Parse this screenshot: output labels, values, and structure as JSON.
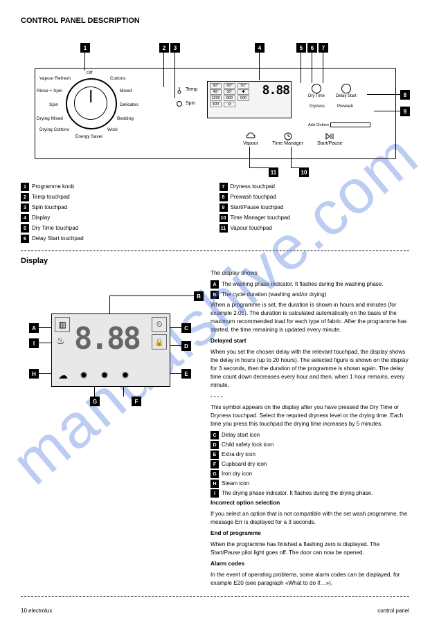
{
  "watermark": "manualshive.com",
  "section_title": "CONTROL PANEL DESCRIPTION",
  "dial": {
    "programs": [
      "Off",
      "Cottons",
      "Mixed",
      "Delicates",
      "Bedding",
      "Wool",
      "Energy Saver",
      "Drying Cottons",
      "Drying Mixed",
      "Spin",
      "Rinse + Spin",
      "Vapour Refresh"
    ]
  },
  "mid": {
    "temp": "Temp",
    "spin": "Spin"
  },
  "screen": {
    "temps": [
      "90°",
      "60°",
      "50°",
      "40°",
      "30°",
      "✱"
    ],
    "spins": [
      "1200",
      "800",
      "600",
      "400",
      "⊘"
    ],
    "digits": "8.88"
  },
  "dry_row": [
    "Dry Time",
    "Delay Start"
  ],
  "dry_row2": [
    "Dryness",
    "Prewash"
  ],
  "add_clothes": "Add Clothes",
  "buttons": [
    "Vapour",
    "Time Manager",
    "Start/Pause"
  ],
  "legend": [
    {
      "n": "1",
      "t": "Programme knob"
    },
    {
      "n": "2",
      "t": "Temp touchpad"
    },
    {
      "n": "3",
      "t": "Spin touchpad"
    },
    {
      "n": "4",
      "t": "Display"
    },
    {
      "n": "5",
      "t": "Dry Time touchpad"
    },
    {
      "n": "6",
      "t": "Delay Start touchpad"
    },
    {
      "n": "7",
      "t": "Dryness touchpad"
    },
    {
      "n": "8",
      "t": "Prewash touchpad"
    },
    {
      "n": "9",
      "t": "Start/Pause touchpad"
    },
    {
      "n": "10",
      "t": "Time Manager touchpad"
    },
    {
      "n": "11",
      "t": "Vapour touchpad"
    }
  ],
  "display_title": "Display",
  "display_intro": "The display shows:",
  "display_A": {
    "n": "A",
    "t": "The washing phase indicator. It flashes during the washing phase."
  },
  "display_B": {
    "n": "B",
    "t": "The cycle duration (washing and/or drying)"
  },
  "display_B_text": "When a programme is set, the duration is shown in hours and minutes (for example 2.05). The duration is calculated automatically on the basis of the maximum recommended load for each type of fabric. After the programme has started, the time remaining is updated every minute.",
  "display_delay": "Delayed start",
  "display_delay_text": "When you set the chosen delay with the relevant touchpad, the display shows the delay in hours (up to 20 hours). The selected figure is shown on the display for 3 seconds, then the duration of the programme is shown again. The delay time count down decreases every hour and then, when 1 hour remains, every minute.",
  "dashes": "- - - -",
  "dashes_text": "This symbol appears on the display after you have pressed the Dry Time or Dryness touchpad. Select the required dryness level or the drying time. Each time you press this touchpad the drying time increases by 5 minutes.",
  "incorrect": "Incorrect option selection",
  "incorrect_text": "If you select an option that is not compatible with the set wash programme, the message Err is displayed for a 3 seconds.",
  "end": "End of programme",
  "end_text": "When the programme has finished a flashing zero is displayed. The Start/Pause pilot light goes off. The door can now be opened.",
  "alarm": "Alarm codes",
  "alarm_text": "In the event of operating problems, some alarm codes can be displayed, for example E20 (see paragraph «What to do if…»).",
  "tlist": [
    {
      "n": "C",
      "t": "Delay start icon"
    },
    {
      "n": "D",
      "t": "Child safety lock icon"
    },
    {
      "n": "E",
      "t": "Extra dry icon"
    },
    {
      "n": "F",
      "t": "Cupboard dry icon"
    },
    {
      "n": "G",
      "t": "Iron dry icon"
    },
    {
      "n": "H",
      "t": "Steam icon"
    },
    {
      "n": "I",
      "t": "The drying phase indicator. It flashes during the drying phase."
    }
  ],
  "footer": {
    "left": "10  electrolux",
    "right": "control panel"
  }
}
